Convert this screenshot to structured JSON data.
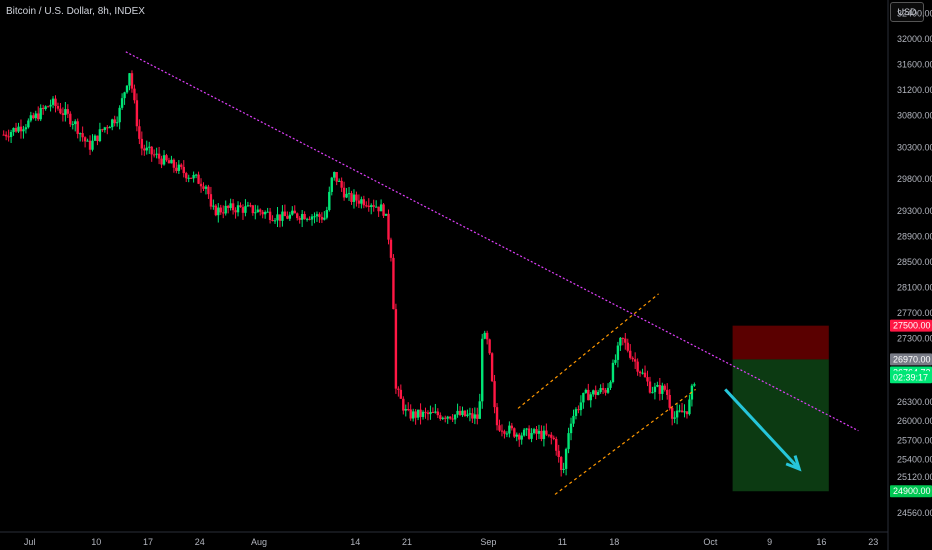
{
  "header": {
    "title": "Bitcoin / U.S. Dollar, 8h, INDEX",
    "currency_button": "USD"
  },
  "colors": {
    "up": "#00e676",
    "down": "#ff1744",
    "trendline": "#e040fb",
    "channel": "#ff9800",
    "arrow": "#26c6da",
    "stop_zone": "#5a0000",
    "target_zone": "#0c3a12"
  },
  "chart_data": {
    "type": "candlestick",
    "ylim": [
      24260,
      32300
    ],
    "y_ticks": [
      32400,
      32000,
      31600,
      31200,
      30800,
      30300,
      29800,
      29300,
      28900,
      28500,
      28100,
      27700,
      27300,
      26300,
      26000,
      25700,
      25400,
      25120,
      24560
    ],
    "x_ticks": [
      "Jul",
      "10",
      "17",
      "24",
      "Aug",
      "14",
      "21",
      "Sep",
      "11",
      "18",
      "Oct",
      "9",
      "16",
      "23"
    ],
    "x_tick_days": [
      0,
      9,
      16,
      23,
      31,
      44,
      51,
      62,
      72,
      79,
      92,
      100,
      107,
      114
    ],
    "x_range_days": [
      -4,
      116
    ],
    "anchors": [
      {
        "d": -3.5,
        "p": 30500
      },
      {
        "d": 0,
        "p": 30700
      },
      {
        "d": 3,
        "p": 31000
      },
      {
        "d": 6,
        "p": 30700
      },
      {
        "d": 8,
        "p": 30300
      },
      {
        "d": 10,
        "p": 30600
      },
      {
        "d": 12,
        "p": 30800
      },
      {
        "d": 13.5,
        "p": 31500
      },
      {
        "d": 15,
        "p": 30300
      },
      {
        "d": 18,
        "p": 30100
      },
      {
        "d": 21,
        "p": 29900
      },
      {
        "d": 24,
        "p": 29700
      },
      {
        "d": 24.5,
        "p": 29300
      },
      {
        "d": 28,
        "p": 29350
      },
      {
        "d": 31,
        "p": 29300
      },
      {
        "d": 34,
        "p": 29200
      },
      {
        "d": 37,
        "p": 29250
      },
      {
        "d": 40,
        "p": 29200
      },
      {
        "d": 41,
        "p": 29900
      },
      {
        "d": 43,
        "p": 29500
      },
      {
        "d": 46,
        "p": 29450
      },
      {
        "d": 48,
        "p": 29300
      },
      {
        "d": 49,
        "p": 28500
      },
      {
        "d": 49.5,
        "p": 26500
      },
      {
        "d": 51,
        "p": 26100
      },
      {
        "d": 55,
        "p": 26100
      },
      {
        "d": 58,
        "p": 26100
      },
      {
        "d": 60.8,
        "p": 26050
      },
      {
        "d": 61,
        "p": 27400
      },
      {
        "d": 62,
        "p": 27200
      },
      {
        "d": 63,
        "p": 25950
      },
      {
        "d": 66,
        "p": 25800
      },
      {
        "d": 69,
        "p": 25800
      },
      {
        "d": 71,
        "p": 25700
      },
      {
        "d": 72,
        "p": 25100
      },
      {
        "d": 73,
        "p": 26000
      },
      {
        "d": 75,
        "p": 26400
      },
      {
        "d": 78,
        "p": 26500
      },
      {
        "d": 80,
        "p": 27300
      },
      {
        "d": 82,
        "p": 26900
      },
      {
        "d": 84,
        "p": 26500
      },
      {
        "d": 86,
        "p": 26500
      },
      {
        "d": 87,
        "p": 26050
      },
      {
        "d": 89,
        "p": 26200
      },
      {
        "d": 90,
        "p": 26750
      }
    ],
    "price_labels": [
      {
        "text": "27500.00",
        "value": 27500,
        "color": "#ff1744"
      },
      {
        "text": "26970.00",
        "value": 26970,
        "color": "#787b86"
      },
      {
        "text": "26764.72",
        "value": 26764.72,
        "color": "#00e676"
      },
      {
        "text": "02:39:17",
        "value": 26690,
        "color": "#00e676"
      },
      {
        "text": "24900.00",
        "value": 24900,
        "color": "#00c853"
      }
    ],
    "descending_trendline": {
      "from": {
        "d": 13,
        "p": 31800
      },
      "to": {
        "d": 112,
        "p": 25850
      }
    },
    "channel_upper": {
      "from": {
        "d": 66,
        "p": 26200
      },
      "to": {
        "d": 85,
        "p": 28000
      }
    },
    "channel_lower": {
      "from": {
        "d": 71,
        "p": 24850
      },
      "to": {
        "d": 90,
        "p": 26500
      }
    },
    "short_position": {
      "start_d": 95,
      "end_d": 108,
      "entry": 26970,
      "stop": 27500,
      "target": 24900
    },
    "projection_arrow": {
      "from": {
        "d": 94,
        "p": 26500
      },
      "to": {
        "d": 104,
        "p": 25250
      }
    }
  }
}
